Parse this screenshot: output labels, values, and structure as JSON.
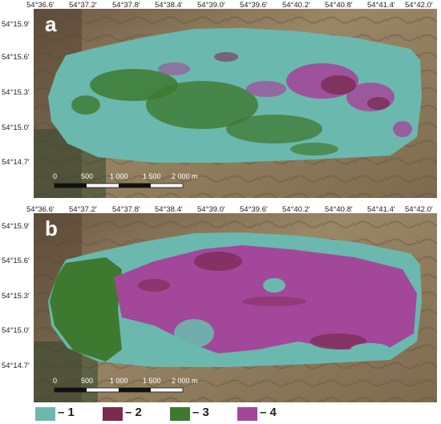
{
  "panels": [
    {
      "label": "a",
      "top_lon": [
        "54°36.6′",
        "54°37.2′",
        "54°37.8′",
        "54°38.4′",
        "54°39.0′",
        "54°39.6′",
        "54°40.2′",
        "54°40.8′",
        "54°41.4′",
        "54°42.0′"
      ],
      "left_lat": [
        "54°15.9′",
        "54°15.6′",
        "54°15.3′",
        "54°15.0′",
        "54°14.7′"
      ],
      "scale_labels": [
        "0",
        "500",
        "1 000",
        "1 500",
        "2 000 m"
      ]
    },
    {
      "label": "b",
      "top_lon": [
        "54°36.6′",
        "54°37.2′",
        "54°37.8′",
        "54°38.4′",
        "54°39.0′",
        "54°39.6′",
        "54°40.2′",
        "54°40.8′",
        "54°41.4′",
        "54°42.0′"
      ],
      "left_lat": [
        "54°15.9′",
        "54°15.6′",
        "54°15.3′",
        "54°15.0′",
        "54°14.7′"
      ],
      "scale_labels": [
        "0",
        "500",
        "1 000",
        "1 500",
        "2 000 m"
      ]
    }
  ],
  "legend": [
    {
      "label": "– 1",
      "color": "#6bb8ae"
    },
    {
      "label": "– 2",
      "color": "#7b2a50"
    },
    {
      "label": "– 3",
      "color": "#3d7a2f"
    },
    {
      "label": "– 4",
      "color": "#a3479a"
    }
  ],
  "colors": {
    "class1": "#6bb8ae",
    "class2": "#7b2a50",
    "class3": "#3d7a2f",
    "class4": "#a3479a",
    "terrain": "#8c7a5c",
    "scale_bar": "#111111",
    "scale_alt": "#ffffff"
  }
}
